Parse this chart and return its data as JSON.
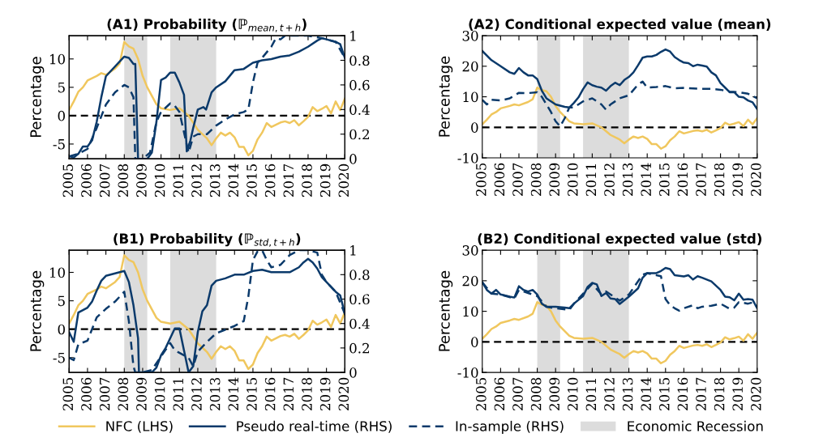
{
  "chart_data": [
    {
      "type": "line",
      "title": "(A1) Probability (ℙ$_{mean,t+h}$)",
      "ylabel": "Percentage",
      "xlim": [
        2005,
        2020
      ],
      "xticks": [
        2005,
        2006,
        2007,
        2008,
        2009,
        2010,
        2011,
        2012,
        2013,
        2014,
        2015,
        2016,
        2017,
        2018,
        2019,
        2020
      ],
      "ylim": [
        -7.6,
        14.1
      ],
      "yticks": [
        -5,
        0,
        5,
        10
      ],
      "y2lim": [
        0,
        1
      ],
      "y2ticks": [
        0,
        0.2,
        0.4,
        0.6,
        0.8,
        1
      ],
      "legend": "bottom",
      "series": [
        {
          "name": "NFC (LHS)",
          "color": "#f0c75e",
          "line_style": "solid",
          "x": [
            2005,
            2005.25,
            2005.5,
            2005.75,
            2006,
            2006.5,
            2006.75,
            2007,
            2007.5,
            2007.75,
            2008,
            2008.25,
            2008.5,
            2008.75,
            2009,
            2009.25,
            2009.5,
            2009.75,
            2010,
            2010.5,
            2011,
            2011.5,
            2012,
            2012.5,
            2012.75,
            2013,
            2013.25,
            2013.5,
            2013.75,
            2014,
            2014.25,
            2014.5,
            2014.75,
            2015,
            2015.25,
            2015.5,
            2015.75,
            2016,
            2016.5,
            2016.75,
            2017,
            2017.25,
            2017.5,
            2017.75,
            2018,
            2018.25,
            2018.5,
            2018.75,
            2019,
            2019.25,
            2019.5,
            2019.75,
            2020
          ],
          "values": [
            1,
            2.5,
            4.2,
            5,
            6.2,
            7,
            7.5,
            7.2,
            8.3,
            9.2,
            13,
            12.2,
            11.8,
            10,
            7,
            5,
            3.5,
            2,
            1.3,
            1,
            1.3,
            0,
            -2.5,
            -4,
            -5.2,
            -4,
            -3,
            -3.5,
            -3,
            -3.8,
            -5.5,
            -5.5,
            -7,
            -6.2,
            -4.2,
            -3,
            -1.3,
            -2,
            -1.2,
            -1,
            -1.3,
            -0.8,
            -1.7,
            -1,
            -0.2,
            1.5,
            0.8,
            1.2,
            1.7,
            0.4,
            2.5,
            1,
            3
          ]
        },
        {
          "name": "Pseudo real-time (RHS)",
          "color": "#0b3a6b",
          "line_style": "solid",
          "axis": "y2",
          "x": [
            2005,
            2005.25,
            2005.5,
            2005.75,
            2006,
            2006.25,
            2006.5,
            2006.75,
            2007,
            2008,
            2008.25,
            2008.5,
            2008.6,
            2008.75,
            2009,
            2009.25,
            2009.5,
            2009.75,
            2010,
            2010.25,
            2010.5,
            2010.75,
            2011,
            2011.25,
            2011.4,
            2011.6,
            2011.75,
            2012,
            2012.3,
            2012.45,
            2012.75,
            2013,
            2013.5,
            2014,
            2014.5,
            2015,
            2015.5,
            2016,
            2016.5,
            2017,
            2017.5,
            2018,
            2018.5,
            2018.75,
            2019,
            2019.5,
            2019.75,
            2020
          ],
          "values": [
            0.02,
            0.01,
            0.04,
            0.1,
            0.1,
            0.15,
            0.3,
            0.5,
            0.67,
            0.83,
            0.82,
            0.77,
            0.77,
            0,
            0,
            0,
            0.05,
            0.3,
            0.64,
            0.66,
            0.7,
            0.7,
            0.62,
            0.52,
            0.06,
            0.15,
            0.25,
            0.4,
            0.42,
            0.4,
            0.54,
            0.58,
            0.63,
            0.72,
            0.73,
            0.78,
            0.8,
            0.81,
            0.83,
            0.84,
            0.87,
            0.91,
            0.96,
            0.98,
            0.97,
            0.95,
            0.93,
            0.82
          ]
        },
        {
          "name": "In-sample (RHS)",
          "color": "#0b3a6b",
          "line_style": "dashed",
          "axis": "y2",
          "x": [
            2005,
            2005.5,
            2006,
            2006.5,
            2007,
            2007.5,
            2008,
            2008.25,
            2008.5,
            2008.6,
            2009,
            2009.4,
            2009.75,
            2010,
            2010.5,
            2010.75,
            2011,
            2011.5,
            2011.75,
            2012,
            2012.5,
            2013,
            2013.5,
            2014,
            2014.5,
            2014.75,
            2015,
            2015.25,
            2015.5,
            2016,
            2016.25,
            2016.5,
            2016.75,
            2017,
            2018,
            2018.75,
            2019,
            2019.5,
            2020
          ],
          "values": [
            0.02,
            0.04,
            0.08,
            0.25,
            0.44,
            0.54,
            0.6,
            0.58,
            0.5,
            0,
            0,
            0.05,
            0.3,
            0.38,
            0.45,
            0.43,
            0.38,
            0.05,
            0.18,
            0.2,
            0.2,
            0.27,
            0.32,
            0.36,
            0.38,
            0.4,
            0.62,
            0.78,
            0.82,
            0.91,
            0.98,
            0.97,
            1,
            1,
            1,
            0.98,
            0.97,
            0.95,
            0.82
          ]
        }
      ],
      "ref_lines": [
        {
          "axis": "y",
          "value": 0,
          "color": "#000000",
          "line_style": "dashed"
        }
      ],
      "bands": [
        {
          "axis": "x",
          "from": 2008,
          "to": 2009.25,
          "label": "Economic Recession",
          "color": "#dcdcdc"
        },
        {
          "axis": "x",
          "from": 2010.5,
          "to": 2013,
          "color": "#dcdcdc"
        }
      ]
    },
    {
      "type": "line",
      "title": "(A2) Conditional expected value (mean)",
      "ylabel": "Percentage",
      "xlim": [
        2005,
        2020
      ],
      "xticks": [
        2005,
        2006,
        2007,
        2008,
        2009,
        2010,
        2011,
        2012,
        2013,
        2014,
        2015,
        2016,
        2017,
        2018,
        2019,
        2020
      ],
      "ylim": [
        -10,
        30
      ],
      "yticks": [
        -10,
        0,
        10,
        20,
        30
      ],
      "series": [
        {
          "color": "#f0c75e",
          "line_style": "solid",
          "x": [
            2005,
            2005.25,
            2005.5,
            2005.75,
            2006,
            2006.5,
            2006.75,
            2007,
            2007.5,
            2007.75,
            2008,
            2008.25,
            2008.5,
            2008.75,
            2009,
            2009.25,
            2009.5,
            2009.75,
            2010,
            2010.5,
            2011,
            2011.5,
            2012,
            2012.5,
            2012.75,
            2013,
            2013.25,
            2013.5,
            2013.75,
            2014,
            2014.25,
            2014.5,
            2014.75,
            2015,
            2015.25,
            2015.5,
            2015.75,
            2016,
            2016.5,
            2016.75,
            2017,
            2017.25,
            2017.5,
            2017.75,
            2018,
            2018.25,
            2018.5,
            2018.75,
            2019,
            2019.25,
            2019.5,
            2019.75,
            2020
          ],
          "values": [
            1,
            2.5,
            4.2,
            5,
            6.2,
            7,
            7.5,
            7.2,
            8.3,
            9.2,
            13,
            12.2,
            11.8,
            10,
            7,
            5,
            3.5,
            2,
            1.3,
            1,
            1.3,
            0,
            -2.5,
            -4,
            -5.2,
            -4,
            -3,
            -3.5,
            -3,
            -3.8,
            -5.5,
            -5.5,
            -7,
            -6.2,
            -4.2,
            -3,
            -1.3,
            -2,
            -1.2,
            -1,
            -1.3,
            -0.8,
            -1.7,
            -1,
            -0.2,
            1.5,
            0.8,
            1.2,
            1.7,
            0.4,
            2.5,
            1,
            3
          ]
        },
        {
          "color": "#0b3a6b",
          "line_style": "solid",
          "x": [
            2005,
            2005.5,
            2006,
            2006.5,
            2006.75,
            2007,
            2007.25,
            2007.5,
            2007.75,
            2008,
            2008.25,
            2008.5,
            2008.75,
            2009,
            2009.5,
            2009.75,
            2010,
            2010.25,
            2010.5,
            2010.75,
            2011,
            2011.25,
            2011.5,
            2011.75,
            2012,
            2012.25,
            2012.5,
            2012.75,
            2013,
            2013.25,
            2013.5,
            2013.75,
            2014,
            2014.25,
            2014.5,
            2014.75,
            2015,
            2015.25,
            2015.5,
            2015.75,
            2016,
            2016.25,
            2016.5,
            2016.75,
            2017,
            2017.25,
            2017.5,
            2017.75,
            2018,
            2018.25,
            2018.5,
            2018.75,
            2019,
            2019.25,
            2019.5,
            2019.75,
            2020
          ],
          "values": [
            25,
            22,
            20,
            18,
            17.5,
            19.4,
            18,
            17,
            17,
            15.8,
            12,
            9.5,
            8.5,
            7.5,
            6.7,
            6.5,
            8,
            9.8,
            12.5,
            14.7,
            13.8,
            13.3,
            13,
            12,
            13.5,
            14.6,
            13.8,
            15.5,
            16.5,
            18,
            20.3,
            22.8,
            23.2,
            23.2,
            23.7,
            24.7,
            25.5,
            24.8,
            23,
            22,
            21.2,
            21,
            20,
            20.5,
            20.2,
            19.9,
            18,
            17,
            14.5,
            13,
            11.5,
            11.5,
            10,
            9.8,
            8.8,
            8.2,
            6
          ]
        },
        {
          "color": "#0b3a6b",
          "line_style": "dashed",
          "x": [
            2005,
            2005.25,
            2005.5,
            2006,
            2006.5,
            2007,
            2007.5,
            2008,
            2008.25,
            2008.5,
            2008.75,
            2009,
            2009.25,
            2009.5,
            2009.75,
            2010,
            2010.25,
            2010.5,
            2011,
            2011.25,
            2011.5,
            2011.75,
            2012,
            2012.5,
            2013,
            2013.5,
            2013.75,
            2014,
            2014.5,
            2015,
            2015.5,
            2016,
            2017,
            2017.5,
            2018,
            2018.5,
            2019,
            2019.5,
            2020
          ],
          "values": [
            9,
            7.5,
            9,
            8.8,
            9.5,
            11.3,
            11.2,
            11.5,
            10,
            7.5,
            5,
            2,
            0.3,
            3,
            6.5,
            6.5,
            7.5,
            8.5,
            9.5,
            8.5,
            7.5,
            5.8,
            7.5,
            9.5,
            10.5,
            14,
            15,
            13,
            13.2,
            13.5,
            12.8,
            12.9,
            12.6,
            12.6,
            12.3,
            11.7,
            11.5,
            11,
            9.5
          ]
        }
      ],
      "ref_lines": [
        {
          "axis": "y",
          "value": 0,
          "color": "#000000",
          "line_style": "dashed"
        }
      ],
      "bands": [
        {
          "axis": "x",
          "from": 2008,
          "to": 2009.25,
          "color": "#dcdcdc"
        },
        {
          "axis": "x",
          "from": 2010.5,
          "to": 2013,
          "color": "#dcdcdc"
        }
      ]
    },
    {
      "type": "line",
      "title": "(B1) Probability (ℙ$_{std,t+h}$)",
      "ylabel": "Percentage",
      "xlim": [
        2005,
        2020
      ],
      "xticks": [
        2005,
        2006,
        2007,
        2008,
        2009,
        2010,
        2011,
        2012,
        2013,
        2014,
        2015,
        2016,
        2017,
        2018,
        2019,
        2020
      ],
      "ylim": [
        -7.6,
        13.9
      ],
      "yticks": [
        -5,
        0,
        5,
        10
      ],
      "y2lim": [
        0,
        1
      ],
      "y2ticks": [
        0,
        0.2,
        0.4,
        0.6,
        0.8,
        1
      ],
      "series": [
        {
          "color": "#f0c75e",
          "line_style": "solid",
          "x": [
            2005,
            2005.25,
            2005.5,
            2005.75,
            2006,
            2006.5,
            2006.75,
            2007,
            2007.5,
            2007.75,
            2008,
            2008.25,
            2008.5,
            2008.75,
            2009,
            2009.25,
            2009.5,
            2009.75,
            2010,
            2010.5,
            2011,
            2011.5,
            2012,
            2012.5,
            2012.75,
            2013,
            2013.25,
            2013.5,
            2013.75,
            2014,
            2014.25,
            2014.5,
            2014.75,
            2015,
            2015.25,
            2015.5,
            2015.75,
            2016,
            2016.5,
            2016.75,
            2017,
            2017.25,
            2017.5,
            2017.75,
            2018,
            2018.25,
            2018.5,
            2018.75,
            2019,
            2019.25,
            2019.5,
            2019.75,
            2020
          ],
          "values": [
            1,
            2.5,
            4.2,
            5,
            6.2,
            7,
            7.5,
            7.2,
            8.3,
            9.2,
            13,
            12.2,
            11.8,
            10,
            7,
            5,
            3.5,
            2,
            1.3,
            1,
            1.3,
            0,
            -2.5,
            -4,
            -5.2,
            -4,
            -3,
            -3.5,
            -3,
            -3.8,
            -5.5,
            -5.5,
            -7,
            -6.2,
            -4.2,
            -3,
            -1.3,
            -2,
            -1.2,
            -1,
            -1.3,
            -0.8,
            -1.7,
            -1,
            -0.2,
            1.5,
            0.8,
            1.2,
            1.7,
            0.4,
            2.5,
            1,
            3
          ]
        },
        {
          "color": "#0b3a6b",
          "line_style": "solid",
          "axis": "y2",
          "x": [
            2005,
            2005.25,
            2005.5,
            2006,
            2006.25,
            2006.5,
            2006.75,
            2007,
            2007.5,
            2008,
            2008.25,
            2008.5,
            2008.75,
            2008.8,
            2009,
            2009.5,
            2009.75,
            2010,
            2010.25,
            2010.5,
            2010.75,
            2011,
            2011.25,
            2011.5,
            2011.75,
            2012,
            2012.25,
            2012.5,
            2012.75,
            2013,
            2013.5,
            2014,
            2014.5,
            2015,
            2015.5,
            2016,
            2016.5,
            2017,
            2017.5,
            2017.75,
            2018,
            2018.25,
            2018.5,
            2018.75,
            2019,
            2019.5,
            2019.75,
            2020
          ],
          "values": [
            0.33,
            0.25,
            0.49,
            0.53,
            0.58,
            0.67,
            0.75,
            0.79,
            0.81,
            0.83,
            0.74,
            0.55,
            0.28,
            0,
            0,
            0,
            0.04,
            0.14,
            0.2,
            0.28,
            0.36,
            0.36,
            0.18,
            0,
            0.05,
            0.33,
            0.5,
            0.55,
            0.71,
            0.75,
            0.77,
            0.8,
            0.8,
            0.83,
            0.84,
            0.82,
            0.82,
            0.82,
            0.86,
            0.9,
            0.93,
            0.9,
            0.85,
            0.78,
            0.74,
            0.66,
            0.63,
            0.48
          ]
        },
        {
          "color": "#0b3a6b",
          "line_style": "dashed",
          "axis": "y2",
          "x": [
            2005,
            2005.25,
            2005.5,
            2006,
            2006.5,
            2007,
            2007.5,
            2008,
            2008.25,
            2008.5,
            2008.6,
            2009,
            2009.5,
            2010,
            2010.5,
            2010.75,
            2011,
            2011.5,
            2011.75,
            2012,
            2012.5,
            2013,
            2013.5,
            2014,
            2014.5,
            2014.75,
            2015,
            2015.25,
            2015.5,
            2015.75,
            2016,
            2016.5,
            2017,
            2017.5,
            2018,
            2018.5,
            2018.75,
            2019,
            2019.5,
            2020
          ],
          "values": [
            0.12,
            0.1,
            0.23,
            0.26,
            0.45,
            0.52,
            0.58,
            0.66,
            0.42,
            0.05,
            0,
            0,
            0.02,
            0.13,
            0.24,
            0.18,
            0.16,
            0.12,
            0.05,
            0.17,
            0.25,
            0.32,
            0.35,
            0.38,
            0.42,
            0.62,
            0.92,
            0.99,
            1,
            0.92,
            0.86,
            0.88,
            0.96,
            1,
            1,
            0.98,
            0.8,
            0.74,
            0.66,
            0.48
          ]
        }
      ],
      "ref_lines": [
        {
          "axis": "y",
          "value": 0,
          "color": "#000000",
          "line_style": "dashed"
        }
      ],
      "bands": [
        {
          "axis": "x",
          "from": 2008,
          "to": 2009.25,
          "color": "#dcdcdc"
        },
        {
          "axis": "x",
          "from": 2010.5,
          "to": 2013,
          "color": "#dcdcdc"
        }
      ]
    },
    {
      "type": "line",
      "title": "(B2) Conditional expected value (std)",
      "ylabel": "Percentage",
      "xlim": [
        2005,
        2020
      ],
      "xticks": [
        2005,
        2006,
        2007,
        2008,
        2009,
        2010,
        2011,
        2012,
        2013,
        2014,
        2015,
        2016,
        2017,
        2018,
        2019,
        2020
      ],
      "ylim": [
        -10,
        30
      ],
      "yticks": [
        -10,
        0,
        10,
        20,
        30
      ],
      "series": [
        {
          "color": "#f0c75e",
          "line_style": "solid",
          "x": [
            2005,
            2005.25,
            2005.5,
            2005.75,
            2006,
            2006.5,
            2006.75,
            2007,
            2007.5,
            2007.75,
            2008,
            2008.25,
            2008.5,
            2008.75,
            2009,
            2009.25,
            2009.5,
            2009.75,
            2010,
            2010.5,
            2011,
            2011.5,
            2012,
            2012.5,
            2012.75,
            2013,
            2013.25,
            2013.5,
            2013.75,
            2014,
            2014.25,
            2014.5,
            2014.75,
            2015,
            2015.25,
            2015.5,
            2015.75,
            2016,
            2016.5,
            2016.75,
            2017,
            2017.25,
            2017.5,
            2017.75,
            2018,
            2018.25,
            2018.5,
            2018.75,
            2019,
            2019.25,
            2019.5,
            2019.75,
            2020
          ],
          "values": [
            1,
            2.5,
            4.2,
            5,
            6.2,
            7,
            7.5,
            7.2,
            8.3,
            9.2,
            13,
            12.2,
            11.8,
            10,
            7,
            5,
            3.5,
            2,
            1.3,
            1,
            1.3,
            0,
            -2.5,
            -4,
            -5.2,
            -4,
            -3,
            -3.5,
            -3,
            -3.8,
            -5.5,
            -5.5,
            -7,
            -6.2,
            -4.2,
            -3,
            -1.3,
            -2,
            -1.2,
            -1,
            -1.3,
            -0.8,
            -1.7,
            -1,
            -0.2,
            1.5,
            0.8,
            1.2,
            1.7,
            0.4,
            2.5,
            1,
            3
          ]
        },
        {
          "color": "#0b3a6b",
          "line_style": "solid",
          "x": [
            2005,
            2005.25,
            2005.5,
            2005.75,
            2006,
            2006.5,
            2006.75,
            2007,
            2007.25,
            2007.5,
            2007.75,
            2008,
            2008.25,
            2008.5,
            2009,
            2009.5,
            2009.75,
            2010,
            2010.5,
            2010.75,
            2011,
            2011.25,
            2011.5,
            2011.75,
            2012,
            2012.25,
            2012.5,
            2013,
            2013.5,
            2013.75,
            2014,
            2014.5,
            2014.75,
            2015,
            2015.25,
            2015.5,
            2016,
            2016.25,
            2016.5,
            2016.75,
            2017,
            2017.5,
            2018,
            2018.25,
            2018.5,
            2018.75,
            2019,
            2019.25,
            2019.5,
            2019.75,
            2020
          ],
          "values": [
            19.5,
            17,
            15.8,
            17,
            15.5,
            14.8,
            14.5,
            18.2,
            17,
            16.5,
            17,
            15.5,
            12.5,
            11.5,
            11.5,
            11.2,
            11,
            12.5,
            15,
            18,
            19.3,
            18.8,
            15,
            16,
            14.2,
            14,
            12.4,
            14.8,
            17.5,
            21,
            22.5,
            22.5,
            23.2,
            24.2,
            23.8,
            21.8,
            21.4,
            21.8,
            20.4,
            21.5,
            21,
            19.8,
            17,
            14.8,
            14.6,
            13.6,
            15.8,
            13.8,
            14,
            13.8,
            11
          ]
        },
        {
          "color": "#0b3a6b",
          "line_style": "dashed",
          "x": [
            2005,
            2005.5,
            2006,
            2006.75,
            2007,
            2007.5,
            2008,
            2008.5,
            2009,
            2009.75,
            2010,
            2011,
            2011.5,
            2011.75,
            2012.5,
            2013,
            2013.75,
            2014,
            2014.5,
            2014.75,
            2015,
            2015.25,
            2015.5,
            2015.75,
            2016,
            2016.5,
            2016.75,
            2017,
            2017.5,
            2018,
            2018.5,
            2018.75,
            2019,
            2019.5,
            2019.75,
            2020
          ],
          "values": [
            19.5,
            15.8,
            15.5,
            14.2,
            17,
            16,
            15,
            11.5,
            11,
            10.5,
            12.5,
            19,
            15.5,
            16.5,
            13.5,
            15.5,
            22,
            22.5,
            21.8,
            21.5,
            14,
            12,
            11,
            10.2,
            11,
            12,
            11,
            11.5,
            11.8,
            12.5,
            10.8,
            11.2,
            13,
            12.5,
            12.9,
            11.5
          ]
        }
      ],
      "ref_lines": [
        {
          "axis": "y",
          "value": 0,
          "color": "#000000",
          "line_style": "dashed"
        }
      ],
      "bands": [
        {
          "axis": "x",
          "from": 2008,
          "to": 2009.25,
          "color": "#dcdcdc"
        },
        {
          "axis": "x",
          "from": 2010.5,
          "to": 2013,
          "color": "#dcdcdc"
        }
      ]
    }
  ]
}
